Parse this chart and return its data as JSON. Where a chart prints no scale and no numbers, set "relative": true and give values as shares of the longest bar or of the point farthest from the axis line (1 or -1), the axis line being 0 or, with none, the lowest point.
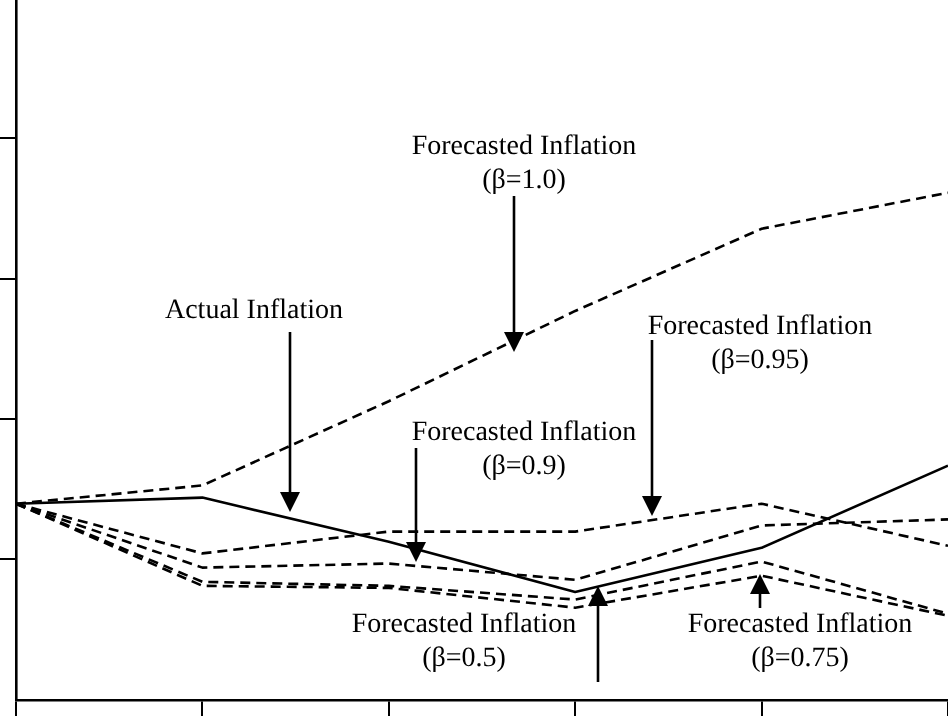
{
  "chart_data": {
    "type": "line",
    "relative": true,
    "categories": [
      null,
      null,
      null,
      null,
      null,
      null
    ],
    "grid": false,
    "legend": false,
    "marker": "none",
    "series": [
      {
        "color": "#000000",
        "line_style": "solid",
        "values": [
          0.387,
          0.399,
          0.312,
          0.213,
          0.3,
          0.462
        ]
      },
      {
        "color": "#000000",
        "line_style": "dashed",
        "values": [
          0.387,
          0.423,
          0.589,
          0.767,
          0.929,
          1
        ]
      },
      {
        "color": "#000000",
        "line_style": "dashed",
        "values": [
          0.387,
          0.289,
          0.332,
          0.332,
          0.387,
          0.304
        ]
      },
      {
        "color": "#000000",
        "line_style": "dashed",
        "values": [
          0.387,
          0.261,
          0.269,
          0.237,
          0.344,
          0.356
        ]
      },
      {
        "color": "#000000",
        "line_style": "dashed",
        "values": [
          0.387,
          0.233,
          0.225,
          0.198,
          0.273,
          0.17
        ]
      },
      {
        "color": "#000000",
        "line_style": "dashed",
        "values": [
          0.387,
          0.225,
          0.221,
          0.182,
          0.245,
          0.166
        ]
      }
    ],
    "annotations": [
      "Forecasted Inflation (β=1.0)",
      "Actual Inflation",
      "Forecasted Inflation (β=0.95)",
      "Forecasted Inflation (β=0.9)",
      "Forecasted Inflation (β=0.5)",
      "Forecasted Inflation (β=0.75)"
    ]
  }
}
